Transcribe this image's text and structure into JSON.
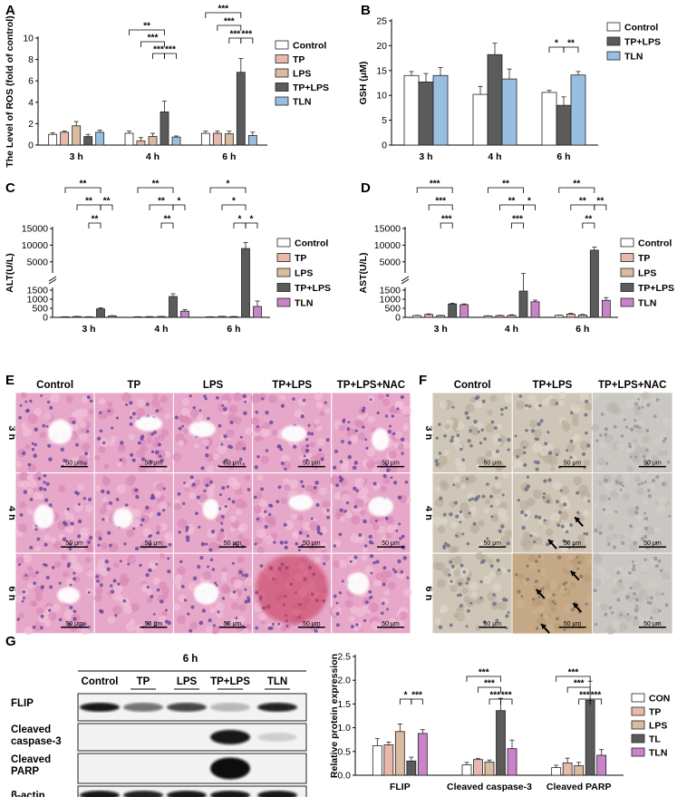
{
  "panels": {
    "A": {
      "label": "A"
    },
    "B": {
      "label": "B"
    },
    "C": {
      "label": "C"
    },
    "D": {
      "label": "D"
    },
    "E": {
      "label": "E"
    },
    "F": {
      "label": "F"
    },
    "G": {
      "label": "G"
    }
  },
  "colors": {
    "Control": "#ffffff",
    "TP": "#e9b8ad",
    "LPS": "#d9bb9f",
    "TP+LPS": "#5b5b5b",
    "TLN": "#99bfe0",
    "TLN_purple": "#c983c8",
    "CON": "#ffffff",
    "TL": "#5b5b5b",
    "he_bg": "#e7a7c8",
    "ihc_bg": "#cfc6b8"
  },
  "chart_data": [
    {
      "id": "A",
      "type": "bar",
      "ylabel": "The Level of ROS (fold of control)",
      "ylim": [
        0,
        10
      ],
      "yticks": [
        0,
        2,
        4,
        6,
        8,
        10
      ],
      "categories": [
        "3 h",
        "4 h",
        "6 h"
      ],
      "legend": [
        "Control",
        "TP",
        "LPS",
        "TP+LPS",
        "TLN"
      ],
      "series": [
        {
          "name": "Control",
          "values": [
            1.0,
            1.1,
            1.1
          ],
          "errors": [
            0.15,
            0.2,
            0.2
          ]
        },
        {
          "name": "TP",
          "values": [
            1.2,
            0.4,
            1.1
          ],
          "errors": [
            0.1,
            0.3,
            0.2
          ]
        },
        {
          "name": "LPS",
          "values": [
            1.8,
            0.8,
            1.05
          ],
          "errors": [
            0.4,
            0.3,
            0.25
          ]
        },
        {
          "name": "TP+LPS",
          "values": [
            0.8,
            3.1,
            6.8
          ],
          "errors": [
            0.2,
            1.0,
            1.3
          ]
        },
        {
          "name": "TLN",
          "values": [
            1.2,
            0.75,
            0.9
          ],
          "errors": [
            0.2,
            0.1,
            0.3
          ]
        }
      ],
      "significance": [
        "**",
        "***",
        "***",
        "***",
        "***",
        "***",
        "***",
        "***",
        "***",
        "***"
      ]
    },
    {
      "id": "B",
      "type": "bar",
      "ylabel": "GSH (μM)",
      "ylim": [
        0,
        25
      ],
      "yticks": [
        0,
        5,
        10,
        15,
        20,
        25
      ],
      "categories": [
        "3 h",
        "4 h",
        "6 h"
      ],
      "legend": [
        "Control",
        "TP+LPS",
        "TLN"
      ],
      "series": [
        {
          "name": "Control",
          "values": [
            14.0,
            10.2,
            10.6
          ],
          "errors": [
            0.8,
            1.6,
            0.4
          ]
        },
        {
          "name": "TP+LPS",
          "values": [
            12.7,
            18.2,
            8.0
          ],
          "errors": [
            1.7,
            2.3,
            1.7
          ]
        },
        {
          "name": "TLN",
          "values": [
            14.0,
            13.3,
            14.1
          ],
          "errors": [
            1.6,
            2.0,
            0.7
          ]
        }
      ],
      "significance": [
        "*",
        "**"
      ]
    },
    {
      "id": "C",
      "type": "bar",
      "ylabel": "ALT(U/L)",
      "axis_break": true,
      "yticks_lower": [
        0,
        500,
        1000,
        1500
      ],
      "yticks_upper": [
        5000,
        10000,
        15000
      ],
      "categories": [
        "3 h",
        "4 h",
        "6 h"
      ],
      "legend": [
        "Control",
        "TP",
        "LPS",
        "TP+LPS",
        "TLN"
      ],
      "series": [
        {
          "name": "Control",
          "values": [
            30,
            30,
            30
          ],
          "errors": [
            5,
            5,
            5
          ]
        },
        {
          "name": "TP",
          "values": [
            45,
            35,
            50
          ],
          "errors": [
            10,
            8,
            10
          ]
        },
        {
          "name": "LPS",
          "values": [
            30,
            45,
            40
          ],
          "errors": [
            5,
            10,
            8
          ]
        },
        {
          "name": "TP+LPS",
          "values": [
            470,
            1150,
            9000
          ],
          "errors": [
            60,
            150,
            1800
          ]
        },
        {
          "name": "TLN",
          "values": [
            80,
            340,
            600
          ],
          "errors": [
            15,
            90,
            300
          ]
        }
      ],
      "significance": [
        "**",
        "**",
        "**",
        "**",
        "**",
        "**",
        "*",
        "**",
        "*",
        "*",
        "*",
        "*"
      ]
    },
    {
      "id": "D",
      "type": "bar",
      "ylabel": "AST(U/L)",
      "axis_break": true,
      "yticks_lower": [
        0,
        500,
        1000,
        1500
      ],
      "yticks_upper": [
        5000,
        10000,
        15000
      ],
      "categories": [
        "3 h",
        "4 h",
        "6 h"
      ],
      "legend": [
        "Control",
        "TP",
        "LPS",
        "TP+LPS",
        "TLN"
      ],
      "series": [
        {
          "name": "Control",
          "values": [
            100,
            80,
            110
          ],
          "errors": [
            15,
            10,
            15
          ]
        },
        {
          "name": "TP",
          "values": [
            160,
            100,
            180
          ],
          "errors": [
            30,
            15,
            40
          ]
        },
        {
          "name": "LPS",
          "values": [
            100,
            110,
            130
          ],
          "errors": [
            15,
            30,
            30
          ]
        },
        {
          "name": "TP+LPS",
          "values": [
            740,
            1450,
            8500
          ],
          "errors": [
            40,
            60,
            900
          ]
        },
        {
          "name": "TLN",
          "values": [
            700,
            860,
            940
          ],
          "errors": [
            40,
            90,
            150
          ]
        }
      ],
      "significance": [
        "***",
        "***",
        "***",
        "**",
        "**",
        "*",
        "***",
        "**",
        "**",
        "**",
        "**"
      ]
    },
    {
      "id": "G",
      "type": "bar",
      "ylabel": "Relative protein expression",
      "ylim": [
        0,
        2.5
      ],
      "yticks": [
        0.0,
        0.5,
        1.0,
        1.5,
        2.0,
        2.5
      ],
      "categories": [
        "FLIP",
        "Cleaved caspase-3",
        "Cleaved PARP"
      ],
      "legend": [
        "CON",
        "TP",
        "LPS",
        "TL",
        "TLN"
      ],
      "series": [
        {
          "name": "CON",
          "values": [
            0.62,
            0.22,
            0.16
          ],
          "errors": [
            0.15,
            0.05,
            0.05
          ]
        },
        {
          "name": "TP",
          "values": [
            0.64,
            0.33,
            0.26
          ],
          "errors": [
            0.06,
            0.02,
            0.1
          ]
        },
        {
          "name": "LPS",
          "values": [
            0.92,
            0.28,
            0.2
          ],
          "errors": [
            0.16,
            0.04,
            0.07
          ]
        },
        {
          "name": "TL",
          "values": [
            0.3,
            1.36,
            1.58
          ],
          "errors": [
            0.08,
            0.26,
            0.4
          ]
        },
        {
          "name": "TLN",
          "values": [
            0.88,
            0.56,
            0.42
          ],
          "errors": [
            0.08,
            0.18,
            0.12
          ]
        }
      ],
      "significance": [
        "*",
        "***",
        "***",
        "***",
        "***",
        "***",
        "***",
        "***",
        "***",
        "***"
      ]
    }
  ],
  "histology_E": {
    "columns": [
      "Control",
      "TP",
      "LPS",
      "TP+LPS",
      "TP+LPS+NAC"
    ],
    "rows": [
      "3 h",
      "4 h",
      "6 h"
    ],
    "scale": "50 μm"
  },
  "histology_F": {
    "columns": [
      "Control",
      "TP+LPS",
      "TP+LPS+NAC"
    ],
    "rows": [
      "3 h",
      "4 h",
      "6 h"
    ],
    "scale": "50 μm"
  },
  "blot_G": {
    "time": "6 h",
    "lanes": [
      "Control",
      "TP",
      "LPS",
      "TP+LPS",
      "TLN"
    ],
    "rows": [
      "FLIP",
      "Cleaved caspase-3",
      "Cleaved PARP",
      "β-actin"
    ],
    "row_lines": [
      [
        "FLIP"
      ],
      [
        "Cleaved",
        "caspase-3"
      ],
      [
        "Cleaved",
        "PARP"
      ],
      [
        "β-actin"
      ]
    ]
  }
}
